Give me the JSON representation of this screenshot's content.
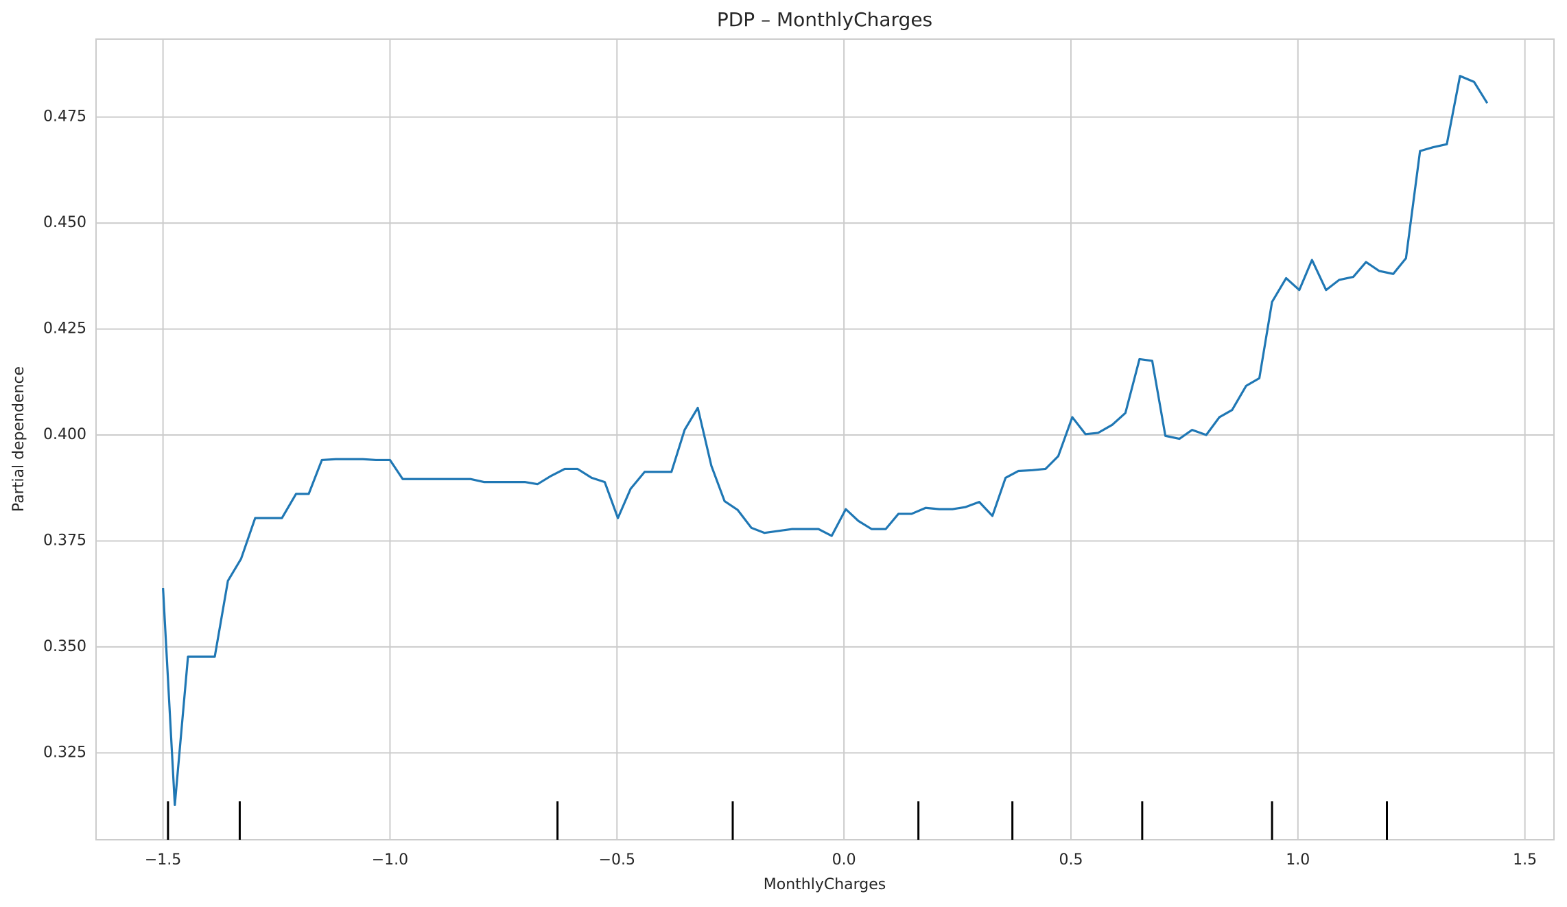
{
  "chart_data": {
    "type": "line",
    "title": "PDP – MonthlyCharges",
    "xlabel": "MonthlyCharges",
    "ylabel": "Partial dependence",
    "color": "#1f77b4",
    "grid": true,
    "xlim": [
      -1.6475,
      1.564
    ],
    "ylim": [
      0.3045,
      0.4934
    ],
    "xticks": [
      {
        "value": -1.5,
        "label": "−1.5"
      },
      {
        "value": -1.0,
        "label": "−1.0"
      },
      {
        "value": -0.5,
        "label": "−0.5"
      },
      {
        "value": 0,
        "label": "0.0"
      },
      0.5,
      {
        "value": 1,
        "label": "1.0"
      },
      1.5
    ],
    "yticks": [
      0.325,
      {
        "value": 0.35,
        "label": "0.350"
      },
      0.375,
      {
        "value": 0.4,
        "label": "0.400"
      },
      0.425,
      {
        "value": 0.45,
        "label": "0.450"
      },
      0.475
    ],
    "x": [
      -1.5,
      -1.474,
      -1.445,
      -1.386,
      -1.357,
      -1.328,
      -1.297,
      -1.238,
      -1.207,
      -1.179,
      -1.15,
      -1.119,
      -1.06,
      -1.031,
      -1.0,
      -0.972,
      -0.822,
      -0.793,
      -0.703,
      -0.675,
      -0.646,
      -0.615,
      -0.587,
      -0.556,
      -0.527,
      -0.498,
      -0.47,
      -0.439,
      -0.38,
      -0.351,
      -0.322,
      -0.292,
      -0.263,
      -0.234,
      -0.204,
      -0.175,
      -0.115,
      -0.056,
      -0.027,
      0.004,
      0.032,
      0.061,
      0.092,
      0.12,
      0.149,
      0.18,
      0.21,
      0.239,
      0.268,
      0.298,
      0.327,
      0.356,
      0.384,
      0.415,
      0.444,
      0.472,
      0.503,
      0.532,
      0.56,
      0.591,
      0.62,
      0.651,
      0.679,
      0.708,
      0.739,
      0.767,
      0.798,
      0.827,
      0.855,
      0.886,
      0.915,
      0.943,
      0.974,
      1.003,
      1.031,
      1.062,
      1.091,
      1.122,
      1.15,
      1.179,
      1.21,
      1.238,
      1.269,
      1.298,
      1.328,
      1.357,
      1.388,
      1.417
    ],
    "values": [
      0.3639,
      0.3127,
      0.3477,
      0.3477,
      0.3656,
      0.3708,
      0.3804,
      0.3804,
      0.3861,
      0.3861,
      0.3941,
      0.3943,
      0.3943,
      0.3941,
      0.3941,
      0.3896,
      0.3896,
      0.3889,
      0.3889,
      0.3884,
      0.3903,
      0.392,
      0.392,
      0.3899,
      0.3889,
      0.3804,
      0.3873,
      0.3913,
      0.3913,
      0.4012,
      0.4064,
      0.3927,
      0.3844,
      0.3823,
      0.3781,
      0.3769,
      0.3778,
      0.3778,
      0.3762,
      0.3825,
      0.3797,
      0.3778,
      0.3778,
      0.3814,
      0.3814,
      0.3828,
      0.3825,
      0.3825,
      0.383,
      0.3842,
      0.3809,
      0.3899,
      0.3915,
      0.3917,
      0.392,
      0.395,
      0.4042,
      0.4002,
      0.4005,
      0.4024,
      0.4052,
      0.4179,
      0.4175,
      0.3998,
      0.3991,
      0.4012,
      0.4,
      0.4042,
      0.4059,
      0.4116,
      0.4134,
      0.4314,
      0.437,
      0.4342,
      0.4413,
      0.4342,
      0.4366,
      0.4373,
      0.4408,
      0.4387,
      0.438,
      0.4417,
      0.467,
      0.4679,
      0.4686,
      0.4847,
      0.4833,
      0.4783
    ],
    "rug": [
      -1.489,
      -1.331,
      -0.631,
      -0.245,
      0.164,
      0.371,
      0.657,
      0.943,
      1.196
    ]
  }
}
